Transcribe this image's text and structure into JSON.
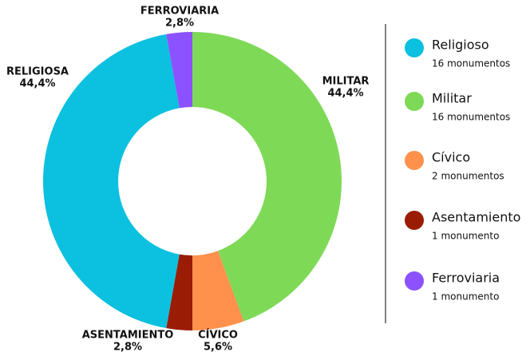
{
  "chart_data": {
    "type": "donut",
    "categories": [
      "MILITAR",
      "CÍVICO",
      "ASENTAMIENTO",
      "RELIGIOSA",
      "FERROVIARIA"
    ],
    "values": [
      44.4,
      5.6,
      2.8,
      44.4,
      2.8
    ],
    "value_labels": [
      "44,4%",
      "5,6%",
      "2,8%",
      "44,4%",
      "2,8%"
    ],
    "colors": [
      "#7ed957",
      "#ff914d",
      "#9b1c05",
      "#0cc0df",
      "#8c52ff"
    ],
    "legend": [
      {
        "name": "Religioso",
        "detail": "16 monumentos",
        "color": "#0cc0df"
      },
      {
        "name": "Militar",
        "detail": "16 monumentos",
        "color": "#7ed957"
      },
      {
        "name": "Cívico",
        "detail": "2 monumentos",
        "color": "#ff914d"
      },
      {
        "name": "Asentamiento",
        "detail": "1 monumento",
        "color": "#9b1c05"
      },
      {
        "name": "Ferroviaria",
        "detail": "1 monumento",
        "color": "#8c52ff"
      }
    ]
  }
}
